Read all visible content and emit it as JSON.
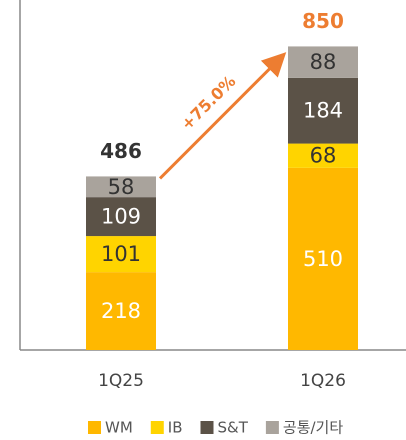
{
  "chart_data": {
    "type": "stacked_bar",
    "categories": [
      "1Q25",
      "1Q26"
    ],
    "series": [
      {
        "name": "WM",
        "color": "#FFB800",
        "values": [
          218,
          510
        ]
      },
      {
        "name": "IB",
        "color": "#FFD400",
        "values": [
          101,
          68
        ]
      },
      {
        "name": "S&T",
        "color": "#5B5247",
        "values": [
          109,
          184
        ]
      },
      {
        "name": "공통/기타",
        "color": "#A9A39C",
        "values": [
          58,
          88
        ]
      }
    ],
    "totals": [
      486,
      850
    ],
    "annotation": "+75.0%",
    "ylim": [
      0,
      980
    ]
  }
}
